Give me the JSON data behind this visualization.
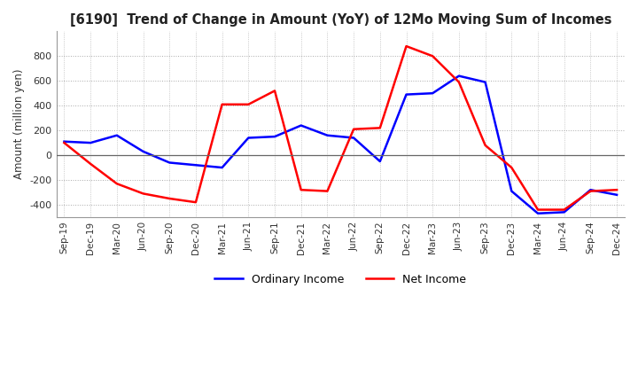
{
  "title": "[6190]  Trend of Change in Amount (YoY) of 12Mo Moving Sum of Incomes",
  "ylabel": "Amount (million yen)",
  "x_labels": [
    "Sep-19",
    "Dec-19",
    "Mar-20",
    "Jun-20",
    "Sep-20",
    "Dec-20",
    "Mar-21",
    "Jun-21",
    "Sep-21",
    "Dec-21",
    "Mar-22",
    "Jun-22",
    "Sep-22",
    "Dec-22",
    "Mar-23",
    "Jun-23",
    "Sep-23",
    "Dec-23",
    "Mar-24",
    "Jun-24",
    "Sep-24",
    "Dec-24"
  ],
  "ordinary_income": [
    110,
    100,
    160,
    30,
    -60,
    -80,
    -100,
    140,
    150,
    240,
    160,
    140,
    -50,
    490,
    500,
    640,
    590,
    -290,
    -470,
    -460,
    -280,
    -320
  ],
  "net_income": [
    100,
    -70,
    -230,
    -310,
    -350,
    -380,
    410,
    410,
    520,
    -280,
    -290,
    210,
    220,
    880,
    800,
    590,
    80,
    -100,
    -440,
    -440,
    -290,
    -280
  ],
  "ordinary_color": "#0000ff",
  "net_color": "#ff0000",
  "ylim": [
    -500,
    1000
  ],
  "yticks": [
    -400,
    -200,
    0,
    200,
    400,
    600,
    800
  ],
  "grid_color": "#aaaaaa",
  "background_color": "#ffffff",
  "legend_labels": [
    "Ordinary Income",
    "Net Income"
  ]
}
